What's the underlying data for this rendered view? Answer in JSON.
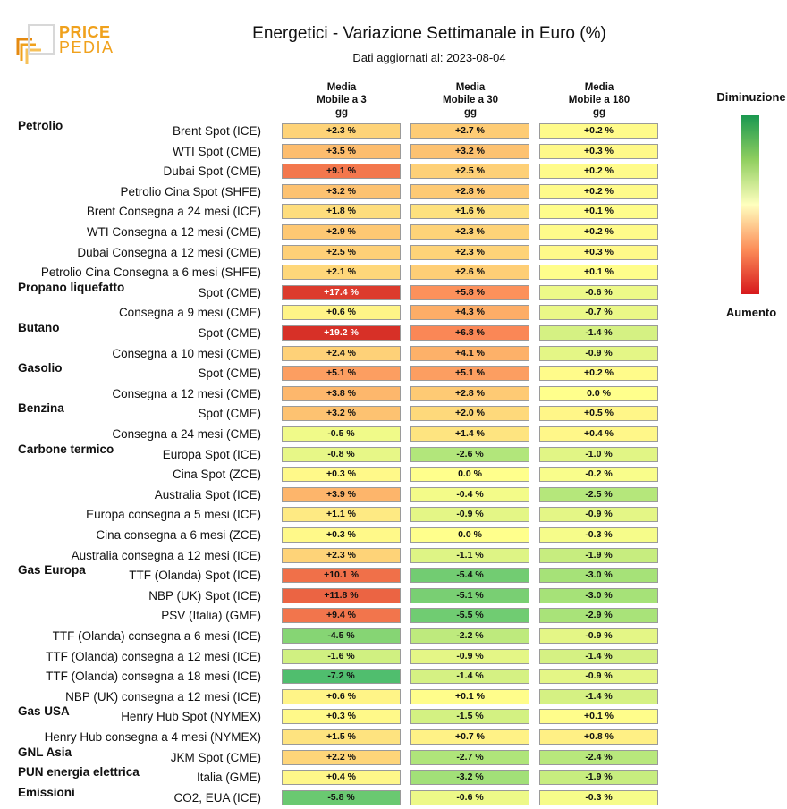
{
  "brand": {
    "word1": "PRICE",
    "word2": "PEDIA"
  },
  "colors": {
    "logo": "#f0a11c",
    "scale_top": "#1a9850",
    "scale_bottom": "#d7191c"
  },
  "chart_data": {
    "type": "table",
    "title": "Energetici - Variazione Settimanale in Euro (%)",
    "subtitle": "Dati aggiornati al: 2023-08-04",
    "columns": [
      "Media Mobile a 3 gg",
      "Media Mobile a 30 gg",
      "Media Mobile a 180 gg"
    ],
    "columns_lines": [
      [
        "Media",
        "Mobile a 3",
        "gg"
      ],
      [
        "Media",
        "Mobile a 30",
        "gg"
      ],
      [
        "Media",
        "Mobile a 180",
        "gg"
      ]
    ],
    "legend": {
      "top": "Diminuzione",
      "bottom": "Aumento"
    },
    "rows": [
      {
        "group": "Petrolio",
        "label": "Brent Spot (ICE)",
        "values": [
          2.3,
          2.7,
          0.2
        ],
        "text": [
          "+2.3 %",
          "+2.7 %",
          "+0.2 %"
        ]
      },
      {
        "group": "",
        "label": "WTI Spot (CME)",
        "values": [
          3.5,
          3.2,
          0.3
        ],
        "text": [
          "+3.5 %",
          "+3.2 %",
          "+0.3 %"
        ]
      },
      {
        "group": "",
        "label": "Dubai Spot (CME)",
        "values": [
          9.1,
          2.5,
          0.2
        ],
        "text": [
          "+9.1 %",
          "+2.5 %",
          "+0.2 %"
        ]
      },
      {
        "group": "",
        "label": "Petrolio Cina Spot (SHFE)",
        "values": [
          3.2,
          2.8,
          0.2
        ],
        "text": [
          "+3.2 %",
          "+2.8 %",
          "+0.2 %"
        ]
      },
      {
        "group": "",
        "label": "Brent Consegna a 24 mesi (ICE)",
        "values": [
          1.8,
          1.6,
          0.1
        ],
        "text": [
          "+1.8 %",
          "+1.6 %",
          "+0.1 %"
        ]
      },
      {
        "group": "",
        "label": "WTI Consegna a 12 mesi (CME)",
        "values": [
          2.9,
          2.3,
          0.2
        ],
        "text": [
          "+2.9 %",
          "+2.3 %",
          "+0.2 %"
        ]
      },
      {
        "group": "",
        "label": "Dubai Consegna a 12 mesi (CME)",
        "values": [
          2.5,
          2.3,
          0.3
        ],
        "text": [
          "+2.5 %",
          "+2.3 %",
          "+0.3 %"
        ]
      },
      {
        "group": "",
        "label": "Petrolio Cina Consegna a 6 mesi (SHFE)",
        "values": [
          2.1,
          2.6,
          0.1
        ],
        "text": [
          "+2.1 %",
          "+2.6 %",
          "+0.1 %"
        ]
      },
      {
        "group": "Propano liquefatto",
        "label": "Spot (CME)",
        "values": [
          17.4,
          5.8,
          -0.6
        ],
        "text": [
          "+17.4 %",
          "+5.8 %",
          "-0.6 %"
        ]
      },
      {
        "group": "",
        "label": "Consegna a 9 mesi (CME)",
        "values": [
          0.6,
          4.3,
          -0.7
        ],
        "text": [
          "+0.6 %",
          "+4.3 %",
          "-0.7 %"
        ]
      },
      {
        "group": "Butano",
        "label": "Spot (CME)",
        "values": [
          19.2,
          6.8,
          -1.4
        ],
        "text": [
          "+19.2 %",
          "+6.8 %",
          "-1.4 %"
        ]
      },
      {
        "group": "",
        "label": "Consegna a 10 mesi (CME)",
        "values": [
          2.4,
          4.1,
          -0.9
        ],
        "text": [
          "+2.4 %",
          "+4.1 %",
          "-0.9 %"
        ]
      },
      {
        "group": "Gasolio",
        "label": "Spot (CME)",
        "values": [
          5.1,
          5.1,
          0.2
        ],
        "text": [
          "+5.1 %",
          "+5.1 %",
          "+0.2 %"
        ]
      },
      {
        "group": "",
        "label": "Consegna a 12 mesi (CME)",
        "values": [
          3.8,
          2.8,
          0.0
        ],
        "text": [
          "+3.8 %",
          "+2.8 %",
          "0.0 %"
        ]
      },
      {
        "group": "Benzina",
        "label": "Spot (CME)",
        "values": [
          3.2,
          2.0,
          0.5
        ],
        "text": [
          "+3.2 %",
          "+2.0 %",
          "+0.5 %"
        ]
      },
      {
        "group": "",
        "label": "Consegna a 24 mesi (CME)",
        "values": [
          -0.5,
          1.4,
          0.4
        ],
        "text": [
          "-0.5 %",
          "+1.4 %",
          "+0.4 %"
        ]
      },
      {
        "group": "Carbone termico",
        "label": "Europa Spot (ICE)",
        "values": [
          -0.8,
          -2.6,
          -1.0
        ],
        "text": [
          "-0.8 %",
          "-2.6 %",
          "-1.0 %"
        ]
      },
      {
        "group": "",
        "label": "Cina Spot (ZCE)",
        "values": [
          0.3,
          0.0,
          -0.2
        ],
        "text": [
          "+0.3 %",
          "0.0 %",
          "-0.2 %"
        ]
      },
      {
        "group": "",
        "label": "Australia Spot (ICE)",
        "values": [
          3.9,
          -0.4,
          -2.5
        ],
        "text": [
          "+3.9 %",
          "-0.4 %",
          "-2.5 %"
        ]
      },
      {
        "group": "",
        "label": "Europa consegna a 5 mesi (ICE)",
        "values": [
          1.1,
          -0.9,
          -0.9
        ],
        "text": [
          "+1.1 %",
          "-0.9 %",
          "-0.9 %"
        ]
      },
      {
        "group": "",
        "label": "Cina consegna a 6 mesi (ZCE)",
        "values": [
          0.3,
          0.0,
          -0.3
        ],
        "text": [
          "+0.3 %",
          "0.0 %",
          "-0.3 %"
        ]
      },
      {
        "group": "",
        "label": "Australia consegna a 12 mesi (ICE)",
        "values": [
          2.3,
          -1.1,
          -1.9
        ],
        "text": [
          "+2.3 %",
          "-1.1 %",
          "-1.9 %"
        ]
      },
      {
        "group": "Gas Europa",
        "label": "TTF (Olanda) Spot (ICE)",
        "values": [
          10.1,
          -5.4,
          -3.0
        ],
        "text": [
          "+10.1 %",
          "-5.4 %",
          "-3.0 %"
        ]
      },
      {
        "group": "",
        "label": "NBP (UK) Spot (ICE)",
        "values": [
          11.8,
          -5.1,
          -3.0
        ],
        "text": [
          "+11.8 %",
          "-5.1 %",
          "-3.0 %"
        ]
      },
      {
        "group": "",
        "label": "PSV (Italia) (GME)",
        "values": [
          9.4,
          -5.5,
          -2.9
        ],
        "text": [
          "+9.4 %",
          "-5.5 %",
          "-2.9 %"
        ]
      },
      {
        "group": "",
        "label": "TTF (Olanda) consegna a 6 mesi (ICE)",
        "values": [
          -4.5,
          -2.2,
          -0.9
        ],
        "text": [
          "-4.5 %",
          "-2.2 %",
          "-0.9 %"
        ]
      },
      {
        "group": "",
        "label": "TTF (Olanda) consegna a 12 mesi (ICE)",
        "values": [
          -1.6,
          -0.9,
          -1.4
        ],
        "text": [
          "-1.6 %",
          "-0.9 %",
          "-1.4 %"
        ]
      },
      {
        "group": "",
        "label": "TTF (Olanda) consegna a 18 mesi (ICE)",
        "values": [
          -7.2,
          -1.4,
          -0.9
        ],
        "text": [
          "-7.2 %",
          "-1.4 %",
          "-0.9 %"
        ]
      },
      {
        "group": "",
        "label": "NBP (UK) consegna a 12 mesi (ICE)",
        "values": [
          0.6,
          0.1,
          -1.4
        ],
        "text": [
          "+0.6 %",
          "+0.1 %",
          "-1.4 %"
        ]
      },
      {
        "group": "Gas USA",
        "label": "Henry Hub Spot (NYMEX)",
        "values": [
          0.3,
          -1.5,
          0.1
        ],
        "text": [
          "+0.3 %",
          "-1.5 %",
          "+0.1 %"
        ]
      },
      {
        "group": "",
        "label": "Henry Hub consegna a 4 mesi (NYMEX)",
        "values": [
          1.5,
          0.7,
          0.8
        ],
        "text": [
          "+1.5 %",
          "+0.7 %",
          "+0.8 %"
        ]
      },
      {
        "group": "GNL Asia",
        "label": "JKM Spot (CME)",
        "values": [
          2.2,
          -2.7,
          -2.4
        ],
        "text": [
          "+2.2 %",
          "-2.7 %",
          "-2.4 %"
        ]
      },
      {
        "group": "PUN energia elettrica",
        "label": "Italia (GME)",
        "values": [
          0.4,
          -3.2,
          -1.9
        ],
        "text": [
          "+0.4 %",
          "-3.2 %",
          "-1.9 %"
        ]
      },
      {
        "group": "Emissioni",
        "label": "CO2, EUA (ICE)",
        "values": [
          -5.8,
          -0.6,
          -0.3
        ],
        "text": [
          "-5.8 %",
          "-0.6 %",
          "-0.3 %"
        ]
      }
    ]
  }
}
